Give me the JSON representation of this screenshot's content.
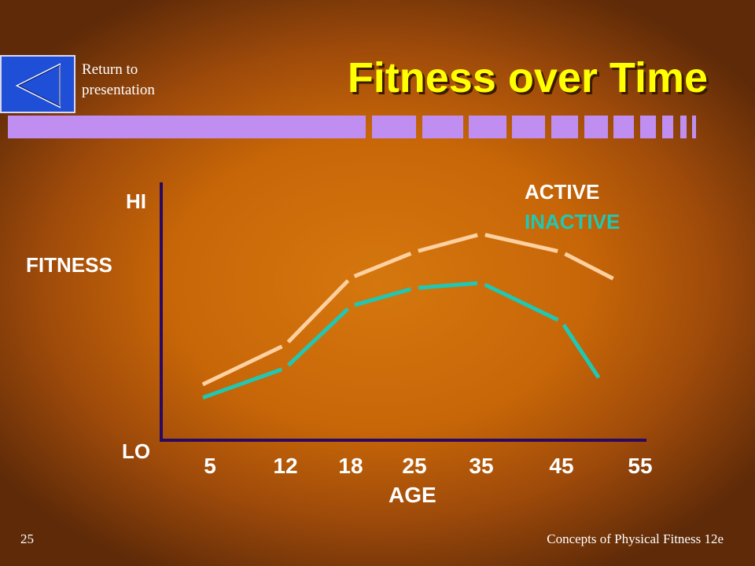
{
  "header": {
    "title": "Fitness over Time",
    "return_line1": "Return to",
    "return_line2": "presentation",
    "nav_icon": "back-triangle-icon"
  },
  "footer": {
    "page_number": "25",
    "book_title": "Concepts of Physical Fitness 12e"
  },
  "colors": {
    "title": "#ffff00",
    "active": "#ffd0a0",
    "inactive": "#20c8b4",
    "axis": "#2a0a60",
    "bars": "#c08ef0"
  },
  "chart_data": {
    "type": "line",
    "categories": [
      "5",
      "12",
      "18",
      "25",
      "35",
      "45",
      "55"
    ],
    "xlabel": "AGE",
    "ylabel": "FITNESS",
    "y_high_label": "HI",
    "y_low_label": "LO",
    "legend_position": "top-right",
    "ylim": [
      0,
      100
    ],
    "series": [
      {
        "name": "ACTIVE",
        "color": "#ffd0a0",
        "style": "dashed",
        "x": [
          4,
          12,
          18,
          25,
          35,
          45,
          52
        ],
        "values": [
          21,
          37,
          63,
          73,
          80,
          73,
          62
        ]
      },
      {
        "name": "INACTIVE",
        "color": "#20c8b4",
        "style": "dashed",
        "x": [
          4,
          12,
          18,
          25,
          35,
          45,
          50
        ],
        "values": [
          16,
          28,
          52,
          59,
          61,
          46,
          23
        ]
      }
    ]
  }
}
